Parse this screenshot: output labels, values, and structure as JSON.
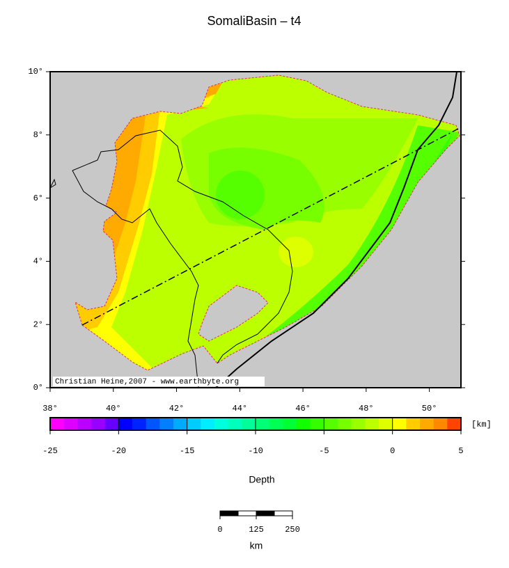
{
  "title": "SomaliBasin – t4",
  "credit": "Christian Heine,2007 - www.earthbyte.org",
  "map": {
    "xlim": [
      38,
      51
    ],
    "ylim": [
      0,
      10
    ],
    "xticks": [
      {
        "value": 38,
        "label": "38°"
      },
      {
        "value": 40,
        "label": "40°"
      },
      {
        "value": 42,
        "label": "42°"
      },
      {
        "value": 44,
        "label": "44°"
      },
      {
        "value": 46,
        "label": "46°"
      },
      {
        "value": 48,
        "label": "48°"
      },
      {
        "value": 50,
        "label": "50°"
      }
    ],
    "yticks": [
      {
        "value": 0,
        "label": "0°"
      },
      {
        "value": 2,
        "label": "2°"
      },
      {
        "value": 4,
        "label": "4°"
      },
      {
        "value": 6,
        "label": "6°"
      },
      {
        "value": 8,
        "label": "8°"
      },
      {
        "value": 10,
        "label": "10°"
      }
    ]
  },
  "colorbar": {
    "label": "Depth",
    "unit": "[km]",
    "lim": [
      -25,
      5
    ],
    "ticks": [
      -25,
      -20,
      -15,
      -10,
      -5,
      0,
      5
    ],
    "colors": [
      "#ff00ff",
      "#dd00ff",
      "#bb00ff",
      "#9900ff",
      "#6600ff",
      "#0000ff",
      "#0022ff",
      "#0055ff",
      "#0080ff",
      "#00aaff",
      "#00ccff",
      "#00eeff",
      "#00ffdd",
      "#00ffbb",
      "#00ff99",
      "#00ff77",
      "#00ff55",
      "#00ff33",
      "#11ff00",
      "#33ff00",
      "#55ff00",
      "#77ff00",
      "#99ff00",
      "#bbff00",
      "#ddff00",
      "#ffff00",
      "#ffcc00",
      "#ffaa00",
      "#ff8800",
      "#ff4400"
    ]
  },
  "scalebar": {
    "unit": "km",
    "lim": [
      0,
      250
    ],
    "ticks": [
      0,
      125,
      250
    ]
  }
}
